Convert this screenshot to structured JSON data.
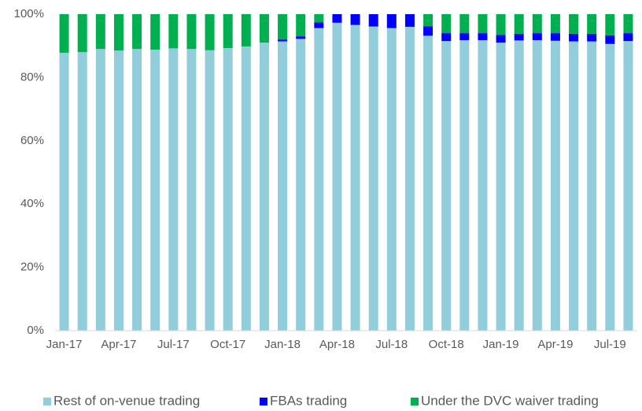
{
  "chart_data": {
    "type": "stacked_bar",
    "categories": [
      "Jan-17",
      null,
      null,
      "Apr-17",
      null,
      null,
      "Jul-17",
      null,
      null,
      "Oct-17",
      null,
      null,
      "Jan-18",
      null,
      null,
      "Apr-18",
      null,
      null,
      "Jul-18",
      null,
      null,
      "Oct-18",
      null,
      null,
      "Jan-19",
      null,
      null,
      "Apr-19",
      null,
      null,
      "Jul-19",
      null
    ],
    "series": [
      {
        "name": "Rest of on-venue trading",
        "color": "#92cddc",
        "values": [
          87.8,
          88,
          89,
          88.5,
          89,
          88.8,
          89.2,
          89,
          88.6,
          89.3,
          89.8,
          91,
          91.4,
          92.2,
          95.6,
          97.3,
          96.6,
          96.1,
          95.6,
          96,
          93.2,
          91.5,
          91.8,
          91.8,
          91,
          91.7,
          91.8,
          91.6,
          91.4,
          91.4,
          90.6,
          91.5
        ]
      },
      {
        "name": "FBAs trading",
        "color": "#0000ff",
        "values": [
          0,
          0,
          0,
          0,
          0,
          0,
          0,
          0,
          0,
          0,
          0,
          0,
          0.6,
          0.8,
          1.8,
          2.7,
          3.4,
          3.9,
          4.4,
          4,
          3,
          2.5,
          2.2,
          2.2,
          2.4,
          2.1,
          2.2,
          2.4,
          2.4,
          2.4,
          2.7,
          2.5
        ]
      },
      {
        "name": "Under the DVC waiver trading",
        "color": "#00b050",
        "values": [
          12.2,
          12,
          11,
          11.5,
          11,
          11.2,
          10.8,
          11,
          11.4,
          10.7,
          10.2,
          9,
          8,
          7,
          2.6,
          0,
          0,
          0,
          0,
          0,
          3.8,
          6,
          6,
          6,
          6.6,
          6.2,
          6,
          6,
          6.2,
          6.2,
          6.7,
          6
        ]
      }
    ],
    "ylim": [
      0,
      100
    ],
    "yticks": [
      {
        "value": 0,
        "label": "0%"
      },
      {
        "value": 20,
        "label": "20%"
      },
      {
        "value": 40,
        "label": "40%"
      },
      {
        "value": 60,
        "label": "60%"
      },
      {
        "value": 80,
        "label": "80%"
      },
      {
        "value": 100,
        "label": "100%"
      }
    ],
    "legend": "bottom"
  }
}
